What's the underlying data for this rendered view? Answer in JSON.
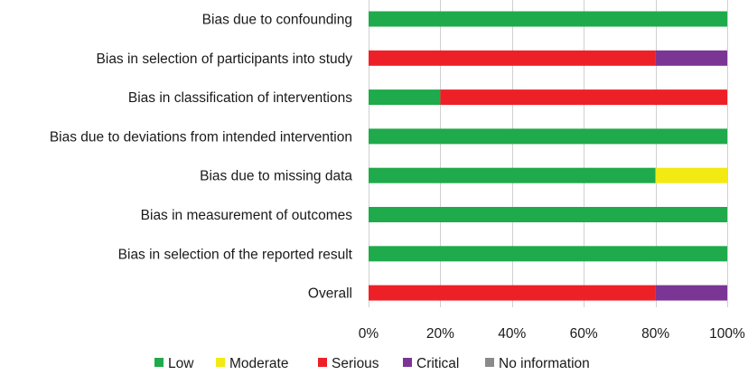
{
  "chart_data": {
    "type": "bar",
    "orientation": "horizontal",
    "stacked": true,
    "categories": [
      "Bias due to confounding",
      "Bias in selection of participants into study",
      "Bias in classification of interventions",
      "Bias due to deviations from intended intervention",
      "Bias due to missing data",
      "Bias in measurement of outcomes",
      "Bias in selection of the reported result",
      "Overall"
    ],
    "series": [
      {
        "name": "Low",
        "color": "#1faa4b",
        "values": [
          100,
          0,
          20,
          100,
          80,
          100,
          100,
          0
        ]
      },
      {
        "name": "Moderate",
        "color": "#f2ea12",
        "values": [
          0,
          0,
          0,
          0,
          20,
          0,
          0,
          0
        ]
      },
      {
        "name": "Serious",
        "color": "#ee2027",
        "values": [
          0,
          80,
          80,
          0,
          0,
          0,
          0,
          80
        ]
      },
      {
        "name": "Critical",
        "color": "#7b3595",
        "values": [
          0,
          20,
          0,
          0,
          0,
          0,
          0,
          20
        ]
      },
      {
        "name": "No information",
        "color": "#8a8a8a",
        "values": [
          0,
          0,
          0,
          0,
          0,
          0,
          0,
          0
        ]
      }
    ],
    "x_ticks": [
      "0%",
      "20%",
      "40%",
      "60%",
      "80%",
      "100%"
    ],
    "xlim": [
      0,
      100
    ],
    "grid": true,
    "legend_position": "bottom",
    "title": "",
    "xlabel": "",
    "ylabel": ""
  }
}
